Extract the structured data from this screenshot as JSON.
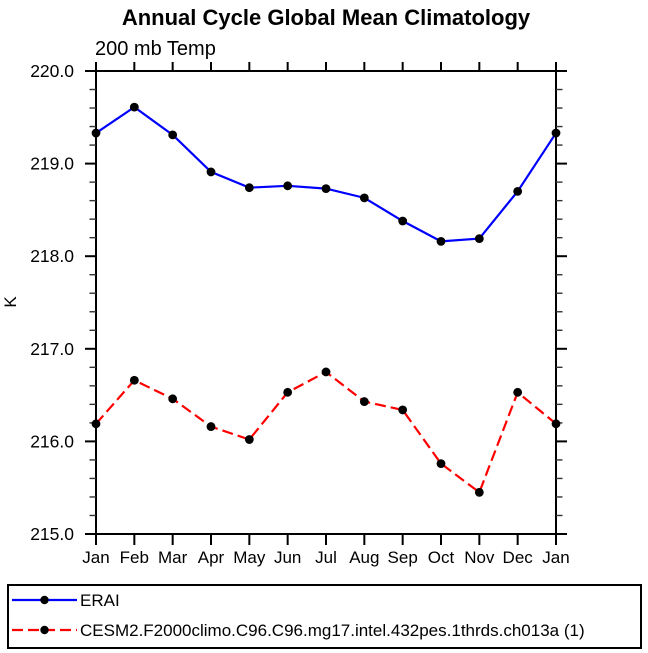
{
  "title": "Annual Cycle Global Mean Climatology",
  "subtitle": "200 mb Temp",
  "chart_data": {
    "type": "line",
    "x": [
      "Jan",
      "Feb",
      "Mar",
      "Apr",
      "May",
      "Jun",
      "Jul",
      "Aug",
      "Sep",
      "Oct",
      "Nov",
      "Dec",
      "Jan"
    ],
    "xlabel": "",
    "ylabel": "K",
    "ylim": [
      215.0,
      220.0
    ],
    "yticks": [
      215.0,
      216.0,
      217.0,
      218.0,
      219.0,
      220.0
    ],
    "ytick_minor_step": 0.2,
    "grid": false,
    "legend_position": "bottom-left-box",
    "marker_color": "#000000",
    "axis_color": "#000000",
    "series": [
      {
        "name": "ERAI",
        "color": "#0000ff",
        "dash": "",
        "values": [
          219.33,
          219.61,
          219.31,
          218.91,
          218.74,
          218.76,
          218.73,
          218.63,
          218.38,
          218.16,
          218.19,
          218.7,
          219.33
        ]
      },
      {
        "name": "CESM2.F2000climo.C96.C96.mg17.intel.432pes.1thrds.ch013a (1)",
        "color": "#ff0000",
        "dash": "11 5",
        "values": [
          216.19,
          216.66,
          216.46,
          216.16,
          216.02,
          216.53,
          216.75,
          216.43,
          216.34,
          215.76,
          215.45,
          216.53,
          216.19
        ]
      }
    ]
  }
}
